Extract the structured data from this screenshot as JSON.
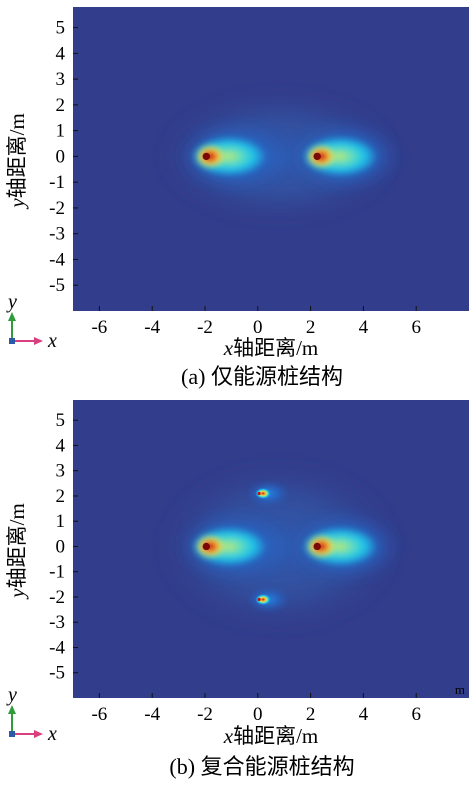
{
  "colors": {
    "background": "#323d8c",
    "colormap": [
      "#3a4796",
      "#2563c4",
      "#1f8fe6",
      "#1fc1e8",
      "#5cdcc2",
      "#bfe870",
      "#f5e24a",
      "#f7a32c",
      "#ec4a1e",
      "#c11512",
      "#7a0806"
    ],
    "axis_y": "#2e9c3a",
    "axis_x": "#d8407f",
    "axis_origin": "#2d5aa6"
  },
  "chart_data": [
    {
      "type": "heatmap",
      "caption": "(a) 仅能源桩结构",
      "xlabel_var": "x",
      "xlabel_text": "轴距离/m",
      "ylabel_var": "y",
      "ylabel_text": "轴距离/m",
      "xlim": [
        -7,
        8
      ],
      "ylim": [
        -6,
        5.8
      ],
      "xticks": [
        -6,
        -4,
        -2,
        0,
        2,
        4,
        6
      ],
      "yticks": [
        5,
        4,
        3,
        2,
        1,
        0,
        -1,
        -2,
        -3,
        -4,
        -5
      ],
      "heat_sources": [
        {
          "x": -1.9,
          "y": 0,
          "kind": "energy pile"
        },
        {
          "x": 2.3,
          "y": 0,
          "kind": "energy pile"
        }
      ],
      "corner_text": "",
      "triad": {
        "y": "y",
        "x": "x"
      }
    },
    {
      "type": "heatmap",
      "caption": "(b) 复合能源桩结构",
      "xlabel_var": "x",
      "xlabel_text": "轴距离/m",
      "ylabel_var": "y",
      "ylabel_text": "轴距离/m",
      "xlim": [
        -7,
        8
      ],
      "ylim": [
        -6,
        5.8
      ],
      "xticks": [
        -6,
        -4,
        -2,
        0,
        2,
        4,
        6
      ],
      "yticks": [
        5,
        4,
        3,
        2,
        1,
        0,
        -1,
        -2,
        -3,
        -4,
        -5
      ],
      "heat_sources": [
        {
          "x": -1.9,
          "y": 0,
          "kind": "energy pile"
        },
        {
          "x": 2.3,
          "y": 0,
          "kind": "energy pile"
        },
        {
          "x": 0.05,
          "y": 2.1,
          "kind": "small pile"
        },
        {
          "x": 0.05,
          "y": -2.1,
          "kind": "small pile"
        }
      ],
      "corner_text": "m",
      "triad": {
        "y": "y",
        "x": "x"
      }
    }
  ]
}
